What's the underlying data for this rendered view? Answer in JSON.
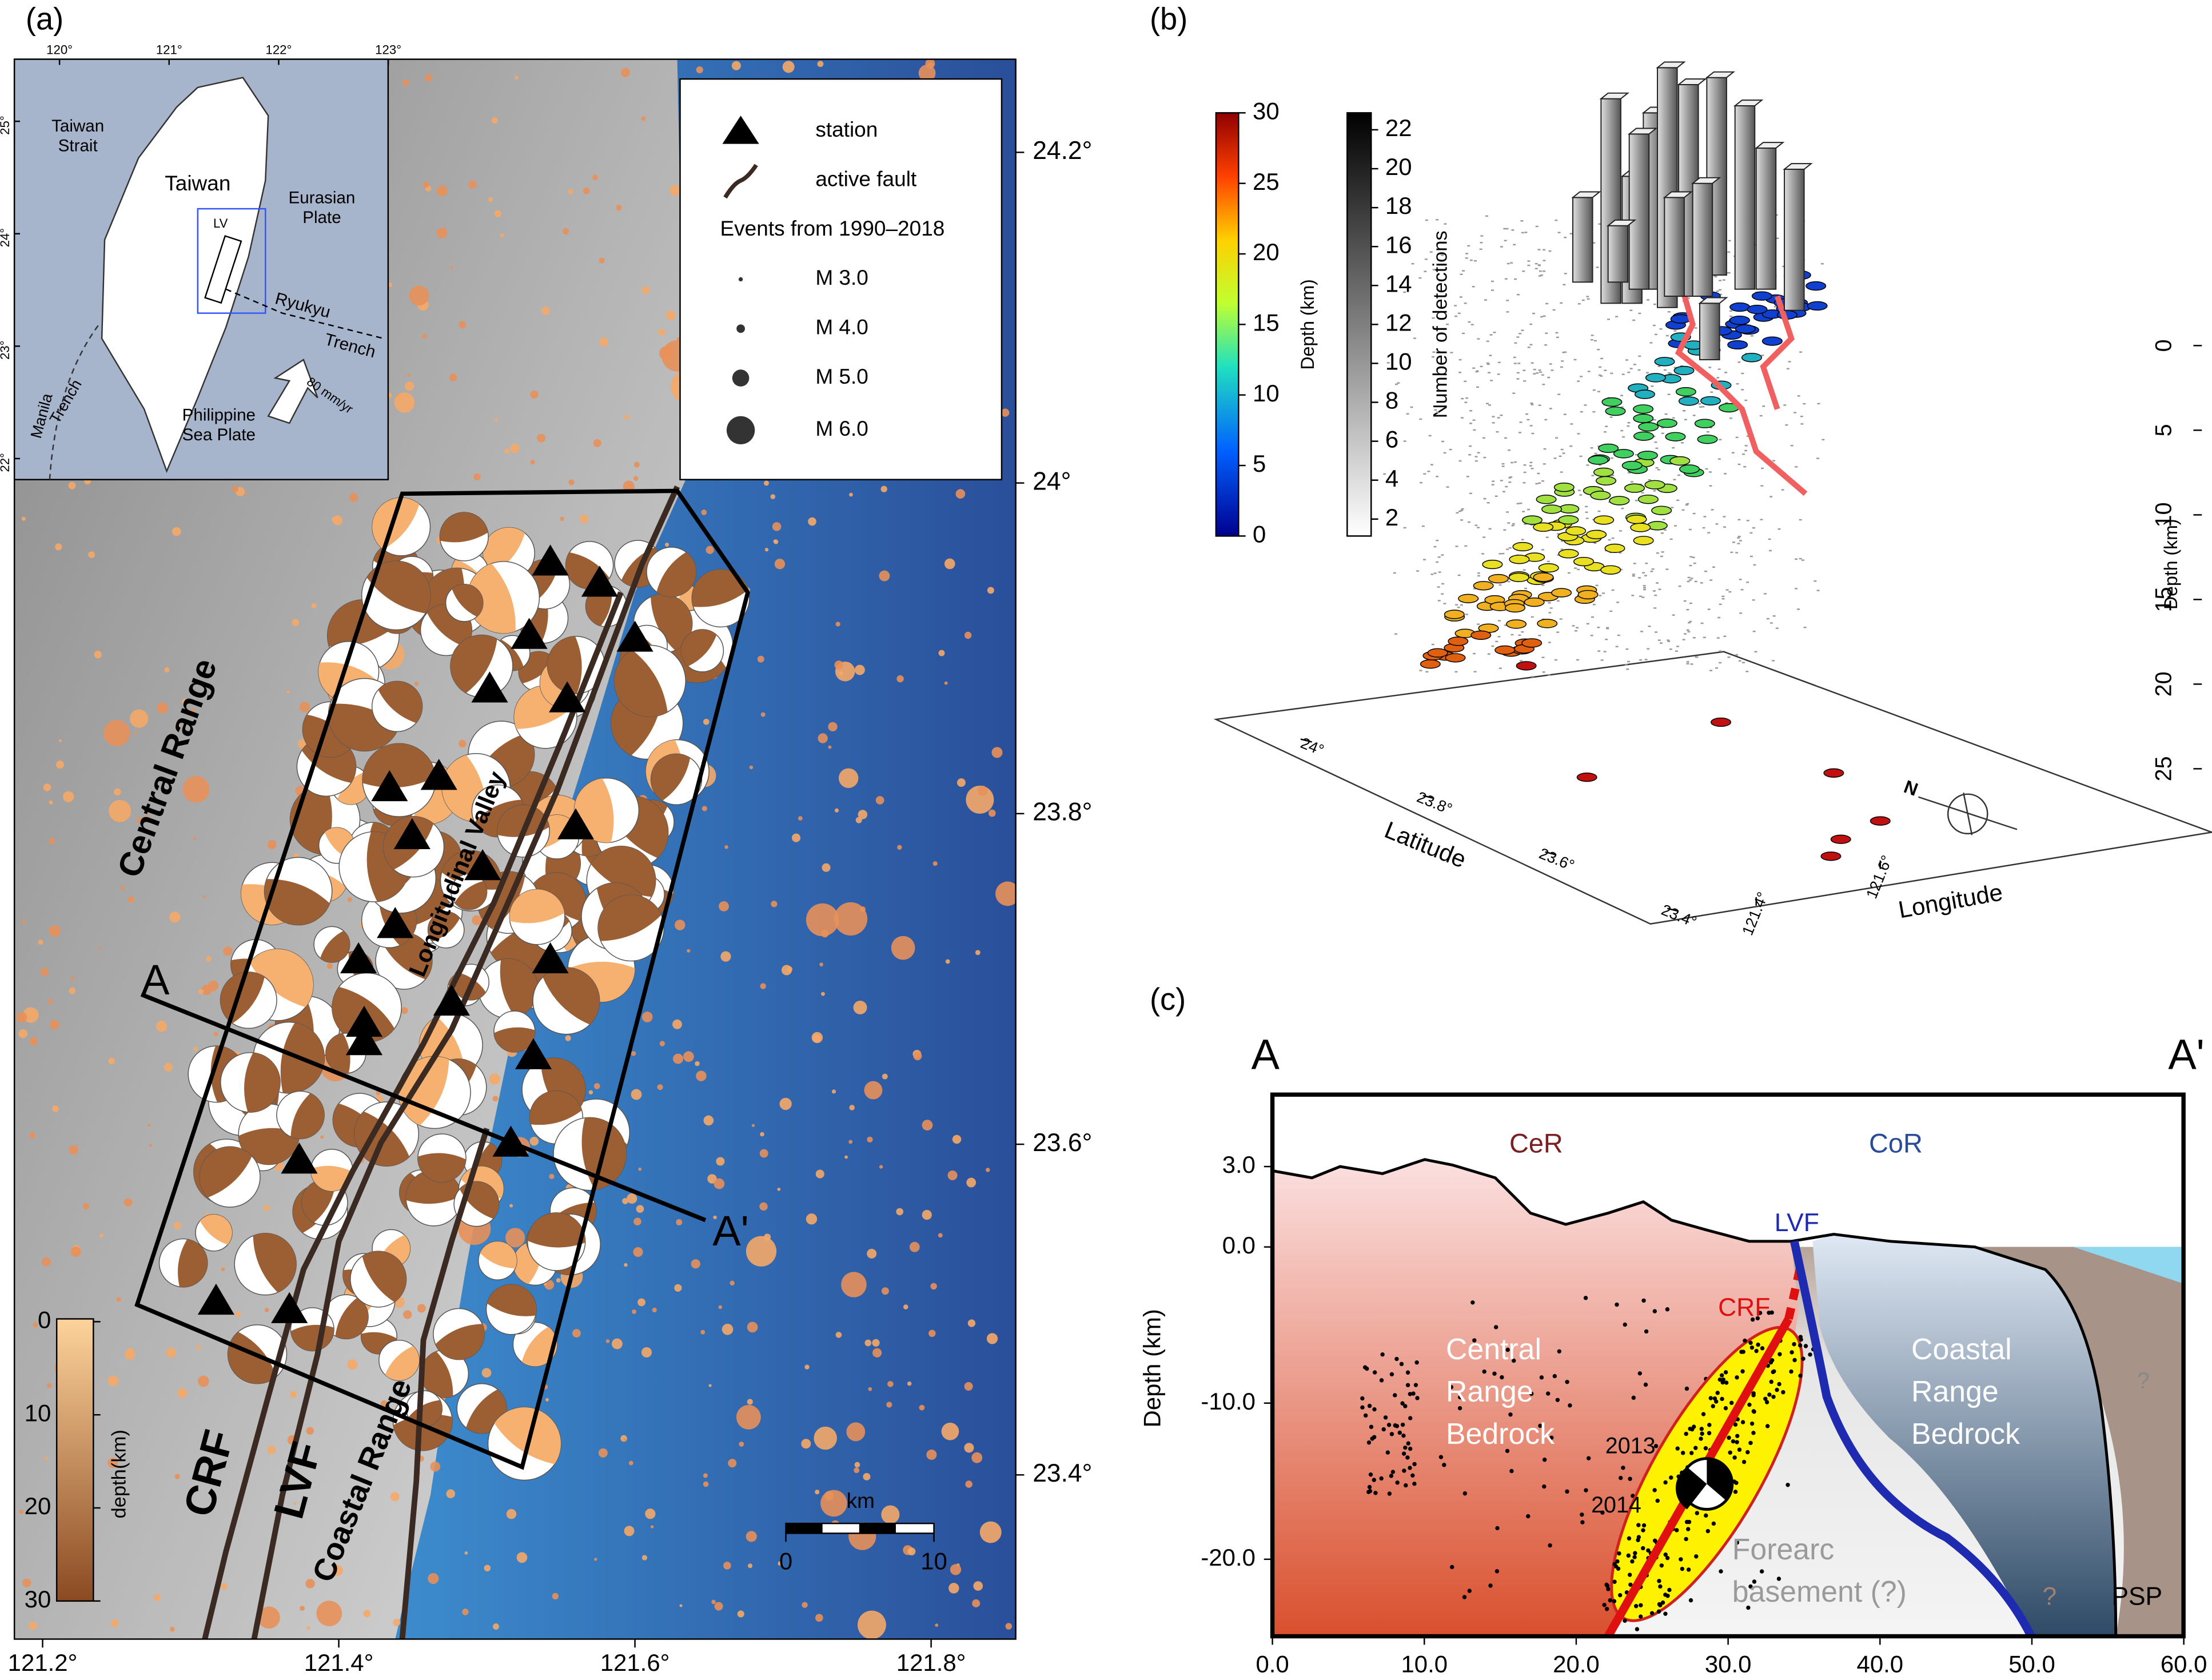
{
  "panel_a": {
    "label": "(a)",
    "inset": {
      "lon_ticks": [
        {
          "value": 120,
          "label": "120°"
        },
        {
          "value": 121,
          "label": "121°"
        },
        {
          "value": 122,
          "label": "122°"
        },
        {
          "value": 123,
          "label": "123°"
        }
      ],
      "lat_ticks": [
        {
          "value": 25,
          "label": "25°"
        },
        {
          "value": 24,
          "label": "24°"
        },
        {
          "value": 23,
          "label": "23°"
        },
        {
          "value": 22,
          "label": "22°"
        }
      ],
      "texts": [
        "Taiwan",
        "Strait",
        "Taiwan",
        "Eurasian",
        "Plate",
        "LV",
        "Ryukyu",
        "Trench",
        "Manila",
        "Trench",
        "Philippine",
        "Sea Plate",
        "80 mm/yr"
      ]
    },
    "legend": {
      "items": [
        "station",
        "active fault"
      ],
      "events_title": "Events from 1990–2018",
      "magnitudes": [
        "M 3.0",
        "M 4.0",
        "M 5.0",
        "M 6.0"
      ]
    },
    "lat_ticks": [
      {
        "value": 24.2,
        "label": "24.2°"
      },
      {
        "value": 24,
        "label": "24°"
      },
      {
        "value": 23.8,
        "label": "23.8°"
      },
      {
        "value": 23.6,
        "label": "23.6°"
      },
      {
        "value": 23.4,
        "label": "23.4°"
      }
    ],
    "lon_ticks": [
      {
        "value": 121.2,
        "label": "121.2°"
      },
      {
        "value": 121.4,
        "label": "121.4°"
      },
      {
        "value": 121.6,
        "label": "121.6°"
      },
      {
        "value": 121.8,
        "label": "121.8°"
      }
    ],
    "labels": {
      "central_range": "Central   Range",
      "longitudinal_valley": "Longitudinal   Valley",
      "coastal_range": "Coastal   Range",
      "crf": "CRF",
      "lvf": "LVF",
      "a": "A",
      "a_prime": "A'"
    },
    "scale": {
      "title": "km",
      "ticks": [
        0,
        10
      ]
    },
    "depth_colorbar": {
      "title": "depth(km)",
      "ticks": [
        0,
        10,
        20,
        30
      ]
    }
  },
  "panel_b": {
    "label": "(b)",
    "depth_colorbar": {
      "title": "Depth (km)",
      "ticks": [
        0,
        5,
        10,
        15,
        20,
        25,
        30
      ]
    },
    "detections_colorbar": {
      "title": "Number of detections",
      "ticks": [
        2,
        4,
        6,
        8,
        10,
        12,
        14,
        16,
        18,
        20,
        22
      ]
    },
    "depth_axis": {
      "title": "Depth (km)",
      "ticks": [
        0,
        5,
        10,
        15,
        20,
        25
      ]
    },
    "latitude": {
      "title": "Latitude",
      "ticks": [
        {
          "value": 24,
          "label": "24°"
        },
        {
          "value": 23.8,
          "label": "23.8°"
        },
        {
          "value": 23.6,
          "label": "23.6°"
        },
        {
          "value": 23.4,
          "label": "23.4°"
        }
      ]
    },
    "longitude": {
      "title": "Longitude",
      "ticks": [
        {
          "value": 121.4,
          "label": "121.4°"
        },
        {
          "value": 121.6,
          "label": "121.6°"
        }
      ]
    },
    "compass": "N"
  },
  "panel_c": {
    "label": "(c)",
    "ends": [
      "A",
      "A'"
    ],
    "xticks": [
      {
        "value": 0,
        "label": "0.0"
      },
      {
        "value": 10,
        "label": "10.0"
      },
      {
        "value": 20,
        "label": "20.0"
      },
      {
        "value": 30,
        "label": "30.0"
      },
      {
        "value": 40,
        "label": "40.0"
      },
      {
        "value": 50,
        "label": "50.0"
      },
      {
        "value": 60,
        "label": "60.0"
      }
    ],
    "yticks": [
      {
        "value": 3,
        "label": "3.0"
      },
      {
        "value": 0,
        "label": "0.0"
      },
      {
        "value": -10,
        "label": "-10.0"
      },
      {
        "value": -20,
        "label": "-20.0"
      }
    ],
    "y_title": "Depth (km)",
    "labels": {
      "cer": "CeR",
      "cor": "CoR",
      "lvf": "LVF",
      "crf": "CRF",
      "central": [
        "Central",
        "Range",
        "Bedrock"
      ],
      "coastal": [
        "Coastal",
        "Range",
        "Bedrock"
      ],
      "y2013": "2013",
      "y2014": "2014",
      "forearc": [
        "Forearc",
        "basement (?)"
      ],
      "psp": "PSP",
      "q1": "?",
      "q2": "?"
    }
  }
}
